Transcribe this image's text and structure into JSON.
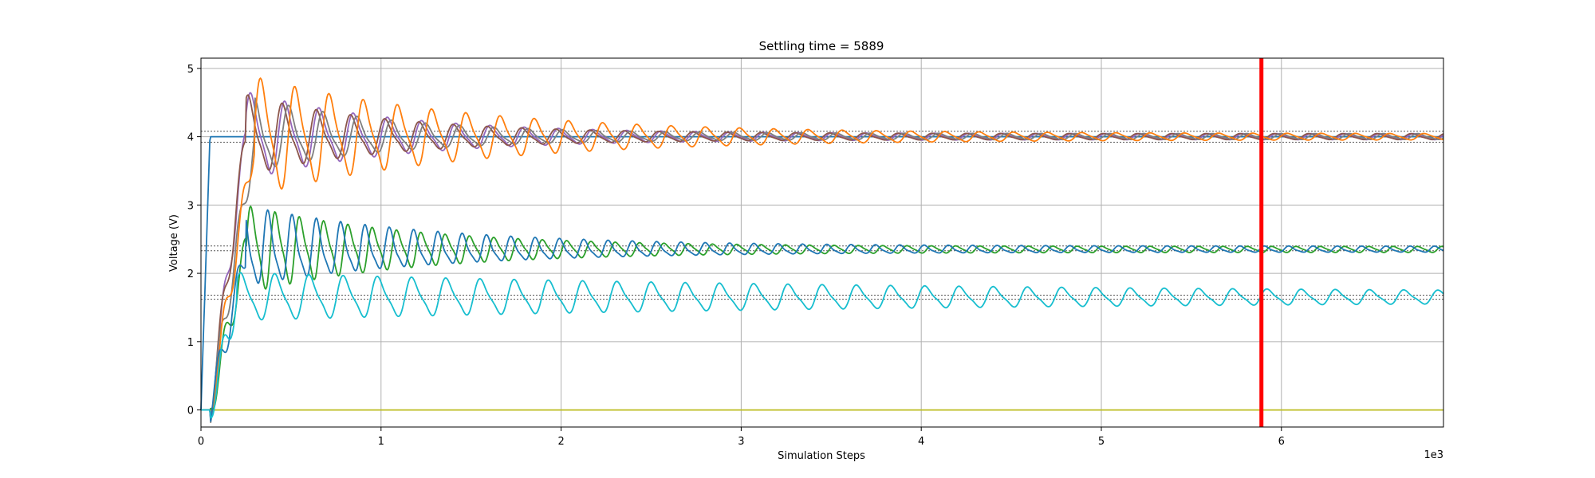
{
  "chart_data": {
    "type": "line",
    "title": "Settling time = 5889",
    "xlabel": "Simulation Steps",
    "ylabel": "Voltage (V)",
    "x_offset_label": "1e3",
    "xlim": [
      0,
      6.9
    ],
    "ylim": [
      -0.25,
      5.15
    ],
    "xticks": [
      "0",
      "1",
      "2",
      "3",
      "4",
      "5",
      "6"
    ],
    "yticks": [
      "0",
      "1",
      "2",
      "3",
      "4",
      "5"
    ],
    "grid": true,
    "settling_time": 5889,
    "settling_color": "#ff0000",
    "reference_lines": [
      4.08,
      3.92,
      2.4,
      2.33,
      1.68,
      1.62
    ],
    "series": [
      {
        "color": "#1f77b4",
        "kind": "step",
        "x0": 0,
        "target": 4.0,
        "rise": 0.05
      },
      {
        "color": "#bcbd22",
        "kind": "flat",
        "value": 0.0
      },
      {
        "color": "#9467bd",
        "kind": "osc",
        "target": 4.0,
        "amp": 0.55,
        "period": 0.19,
        "decay": 1.2,
        "phase": 0.4,
        "rise": 0.25
      },
      {
        "color": "#8c564b",
        "kind": "osc",
        "target": 4.0,
        "amp": 0.5,
        "period": 0.19,
        "decay": 1.25,
        "phase": 0.9,
        "rise": 0.25
      },
      {
        "color": "#7f7f7f",
        "kind": "osc",
        "target": 4.0,
        "amp": 0.45,
        "period": 0.19,
        "decay": 1.3,
        "phase": 1.4,
        "rise": 0.3
      },
      {
        "color": "#ff7f0e",
        "kind": "osc",
        "target": 4.0,
        "amp": 0.75,
        "period": 0.19,
        "decay": 0.85,
        "phase": 0.2,
        "rise": 0.3
      },
      {
        "color": "#2ca02c",
        "kind": "osc",
        "target": 2.35,
        "amp": 0.55,
        "period": 0.135,
        "decay": 1.1,
        "phase": 0.0,
        "rise": 0.25
      },
      {
        "color": "#1f77b4",
        "kind": "osc",
        "target": 2.35,
        "amp": 0.5,
        "period": 0.135,
        "decay": 0.95,
        "phase": 2.0,
        "rise": 0.25
      },
      {
        "color": "#17becf",
        "kind": "osc",
        "target": 1.65,
        "amp": 0.28,
        "period": 0.19,
        "decay": 0.25,
        "phase": 0.6,
        "rise": 0.2
      }
    ]
  }
}
